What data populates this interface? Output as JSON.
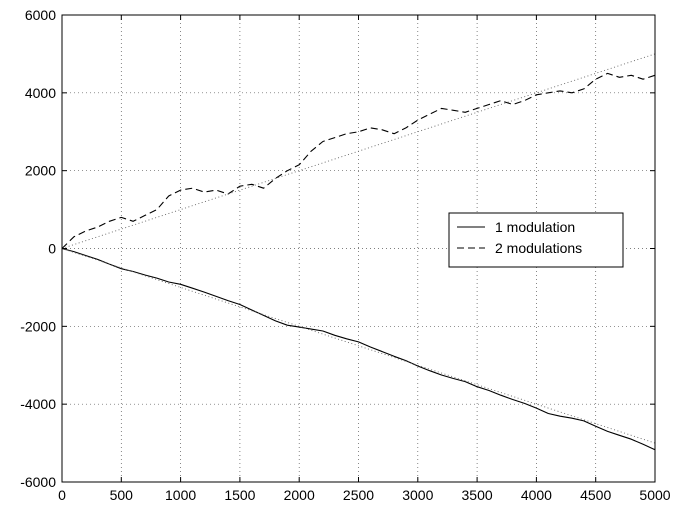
{
  "chart_data": {
    "type": "line",
    "title": "",
    "xlabel": "",
    "ylabel": "",
    "xlim": [
      0,
      5000
    ],
    "ylim": [
      -6000,
      6000
    ],
    "xticks": [
      0,
      500,
      1000,
      1500,
      2000,
      2500,
      3000,
      3500,
      4000,
      4500,
      5000
    ],
    "yticks": [
      -6000,
      -4000,
      -2000,
      0,
      2000,
      4000,
      6000
    ],
    "xtick_labels": [
      "0",
      "500",
      "1000",
      "1500",
      "2000",
      "2500",
      "3000",
      "3500",
      "4000",
      "4500",
      "5000"
    ],
    "ytick_labels": [
      "-6000",
      "-4000",
      "-2000",
      "0",
      "2000",
      "4000",
      "6000"
    ],
    "grid": true,
    "legend_position": "center-right",
    "series": [
      {
        "name": "1 modulation",
        "style": "solid",
        "color": "#000000",
        "x": [
          0,
          100,
          200,
          300,
          400,
          500,
          600,
          700,
          800,
          900,
          1000,
          1100,
          1200,
          1300,
          1400,
          1500,
          1600,
          1700,
          1800,
          1900,
          2000,
          2100,
          2200,
          2300,
          2400,
          2500,
          2600,
          2700,
          2800,
          2900,
          3000,
          3100,
          3200,
          3300,
          3400,
          3500,
          3600,
          3700,
          3800,
          3900,
          4000,
          4100,
          4200,
          4300,
          4400,
          4500,
          4600,
          4700,
          4800,
          4900,
          5000
        ],
        "y": [
          0,
          -80,
          -180,
          -280,
          -400,
          -520,
          -590,
          -680,
          -760,
          -860,
          -920,
          -1020,
          -1120,
          -1230,
          -1340,
          -1440,
          -1580,
          -1720,
          -1860,
          -1970,
          -2020,
          -2070,
          -2120,
          -2230,
          -2320,
          -2400,
          -2530,
          -2650,
          -2770,
          -2880,
          -3020,
          -3140,
          -3250,
          -3340,
          -3420,
          -3550,
          -3650,
          -3770,
          -3880,
          -3980,
          -4100,
          -4240,
          -4310,
          -4360,
          -4430,
          -4570,
          -4700,
          -4800,
          -4900,
          -5030,
          -5170
        ]
      },
      {
        "name": "2 modulations",
        "style": "dashed",
        "color": "#000000",
        "x": [
          0,
          100,
          200,
          300,
          400,
          500,
          600,
          700,
          800,
          900,
          1000,
          1100,
          1200,
          1300,
          1400,
          1500,
          1600,
          1700,
          1800,
          1900,
          2000,
          2100,
          2200,
          2300,
          2400,
          2500,
          2600,
          2700,
          2800,
          2900,
          3000,
          3100,
          3200,
          3300,
          3400,
          3500,
          3600,
          3700,
          3800,
          3900,
          4000,
          4100,
          4200,
          4300,
          4400,
          4500,
          4600,
          4700,
          4800,
          4900,
          5000
        ],
        "y": [
          0,
          300,
          450,
          550,
          700,
          800,
          700,
          850,
          1000,
          1350,
          1500,
          1550,
          1450,
          1500,
          1400,
          1600,
          1650,
          1550,
          1800,
          2000,
          2150,
          2500,
          2750,
          2850,
          2950,
          3000,
          3100,
          3050,
          2950,
          3100,
          3300,
          3450,
          3600,
          3550,
          3500,
          3600,
          3700,
          3800,
          3700,
          3800,
          3950,
          4000,
          4050,
          4000,
          4100,
          4350,
          4500,
          4400,
          4450,
          4350,
          4450
        ]
      },
      {
        "name": "",
        "style": "dotted",
        "color": "#666666",
        "x": [
          0,
          5000
        ],
        "y": [
          0,
          5000
        ]
      },
      {
        "name": "",
        "style": "dotted",
        "color": "#666666",
        "x": [
          0,
          5000
        ],
        "y": [
          0,
          -5000
        ]
      }
    ]
  }
}
